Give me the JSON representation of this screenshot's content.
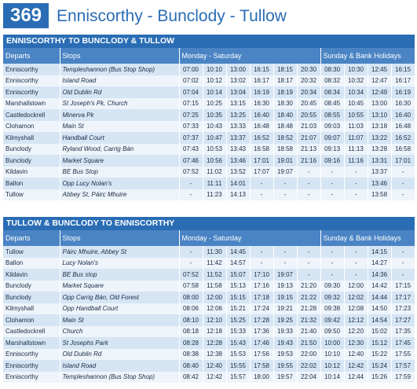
{
  "route_number": "369",
  "title": "Enniscorthy - Bunclody - Tullow",
  "tables": [
    {
      "heading": "ENNISCORTHY TO BUNCLODY & TULLOW",
      "columns": {
        "departs": "Departs",
        "stops": "Stops",
        "weekday": "Monday - Saturday",
        "sunday": "Sunday & Bank Holidays"
      },
      "rows": [
        [
          "Enniscorthy",
          "Templeshannon (Bus Stop Shop)",
          "07:00",
          "10:10",
          "13:00",
          "16:15",
          "18:15",
          "20:30",
          "08:30",
          "10:30",
          "12:45",
          "16:15"
        ],
        [
          "Enniscorthy",
          "Island Road",
          "07:02",
          "10:12",
          "13:02",
          "16:17",
          "18:17",
          "20:32",
          "08:32",
          "10:32",
          "12:47",
          "16:17"
        ],
        [
          "Enniscorthy",
          "Old Dublin Rd",
          "07:04",
          "10:14",
          "13:04",
          "16:19",
          "18:19",
          "20:34",
          "08:34",
          "10:34",
          "12:49",
          "16:19"
        ],
        [
          "Marshallstown",
          "St Joseph's Pk, Church",
          "07:15",
          "10:25",
          "13:15",
          "16:30",
          "18:30",
          "20:45",
          "08:45",
          "10:45",
          "13:00",
          "16:30"
        ],
        [
          "Castledockrell",
          "Minerva Pk",
          "07:25",
          "10:35",
          "13:25",
          "16:40",
          "18:40",
          "20:55",
          "08:55",
          "10:55",
          "13:10",
          "16:40"
        ],
        [
          "Clohamon",
          "Main St",
          "07:33",
          "10:43",
          "13:33",
          "16:48",
          "18:48",
          "21:03",
          "09:03",
          "11:03",
          "13:18",
          "16:48"
        ],
        [
          "Kilmyshall",
          "Handball Court",
          "07:37",
          "10:47",
          "13:37",
          "16:52",
          "18:52",
          "21:07",
          "09:07",
          "11:07",
          "13:22",
          "16:52"
        ],
        [
          "Bunclody",
          "Ryland Wood, Carrig Bán",
          "07:43",
          "10:53",
          "13:43",
          "16:58",
          "18:58",
          "21:13",
          "09:13",
          "11:13",
          "13:28",
          "16:58"
        ],
        [
          "Bunclody",
          "Market Square",
          "07:46",
          "10:56",
          "13:46",
          "17:01",
          "19:01",
          "21:16",
          "09:16",
          "11:16",
          "13:31",
          "17:01"
        ],
        [
          "Kildavin",
          "BE Bus Stop",
          "07:52",
          "11:02",
          "13:52",
          "17:07",
          "19:07",
          "-",
          "-",
          "-",
          "13:37",
          "-"
        ],
        [
          "Ballon",
          "Opp Lucy Nolan's",
          "-",
          "11:11",
          "14:01",
          "-",
          "-",
          "-",
          "-",
          "-",
          "13:46",
          "-"
        ],
        [
          "Tullow",
          "Abbey St, Páirc Mhuire",
          "-",
          "11:23",
          "14:13",
          "-",
          "-",
          "-",
          "-",
          "-",
          "13:58",
          "-"
        ]
      ]
    },
    {
      "heading": "TULLOW & BUNCLODY TO ENNISCORTHY",
      "columns": {
        "departs": "Departs",
        "stops": "Stops",
        "weekday": "Monday - Saturday",
        "sunday": "Sunday & Bank Holidays"
      },
      "rows": [
        [
          "Tullow",
          "Páirc Mhuire, Abbey St",
          "-",
          "11:30",
          "14:45",
          "-",
          "-",
          "-",
          "-",
          "-",
          "14:15",
          "-"
        ],
        [
          "Ballon",
          "Lucy Nolan's",
          "-",
          "11:42",
          "14:57",
          "-",
          "-",
          "-",
          "-",
          "-",
          "14:27",
          "-"
        ],
        [
          "Kildavin",
          "BE Bus stop",
          "07:52",
          "11:52",
          "15:07",
          "17:10",
          "19:07",
          "-",
          "-",
          "-",
          "14:36",
          "-"
        ],
        [
          "Bunclody",
          "Market Square",
          "07:58",
          "11:58",
          "15:13",
          "17:16",
          "19:13",
          "21:20",
          "09:30",
          "12:00",
          "14:42",
          "17:15"
        ],
        [
          "Bunclody",
          "Opp Carrig Bán, Old Forest",
          "08:00",
          "12:00",
          "15:15",
          "17:18",
          "19:15",
          "21:22",
          "09:32",
          "12:02",
          "14:44",
          "17:17"
        ],
        [
          "Kilmyshall",
          "Opp Handball Court",
          "08:06",
          "12:06",
          "15:21",
          "17:24",
          "19:21",
          "21:28",
          "09:38",
          "12:08",
          "14:50",
          "17:23"
        ],
        [
          "Clohamon",
          "Main St",
          "08:10",
          "12:10",
          "15:25",
          "17:28",
          "19:25",
          "21:32",
          "09:42",
          "12:12",
          "14:54",
          "17:27"
        ],
        [
          "Castledockrell",
          "Church",
          "08:18",
          "12:18",
          "15:33",
          "17:36",
          "19:33",
          "21:40",
          "09:50",
          "12:20",
          "15:02",
          "17:35"
        ],
        [
          "Marshallstown",
          "St Josephs Park",
          "08:28",
          "12:28",
          "15:43",
          "17:46",
          "19:43",
          "21:50",
          "10:00",
          "12:30",
          "15:12",
          "17:45"
        ],
        [
          "Enniscorthy",
          "Old Dublin Rd",
          "08:38",
          "12:38",
          "15:53",
          "17:56",
          "19:53",
          "22:00",
          "10:10",
          "12:40",
          "15:22",
          "17:55"
        ],
        [
          "Enniscorthy",
          "Island Road",
          "08:40",
          "12:40",
          "15:55",
          "17:58",
          "19:55",
          "22:02",
          "10:12",
          "12:42",
          "15:24",
          "17:57"
        ],
        [
          "Enniscorthy",
          "Templeshannon (Bus Stop Shop)",
          "08:42",
          "12:42",
          "15:57",
          "18:00",
          "19:57",
          "22:04",
          "10:14",
          "12:44",
          "15:26",
          "17:59"
        ]
      ]
    }
  ]
}
